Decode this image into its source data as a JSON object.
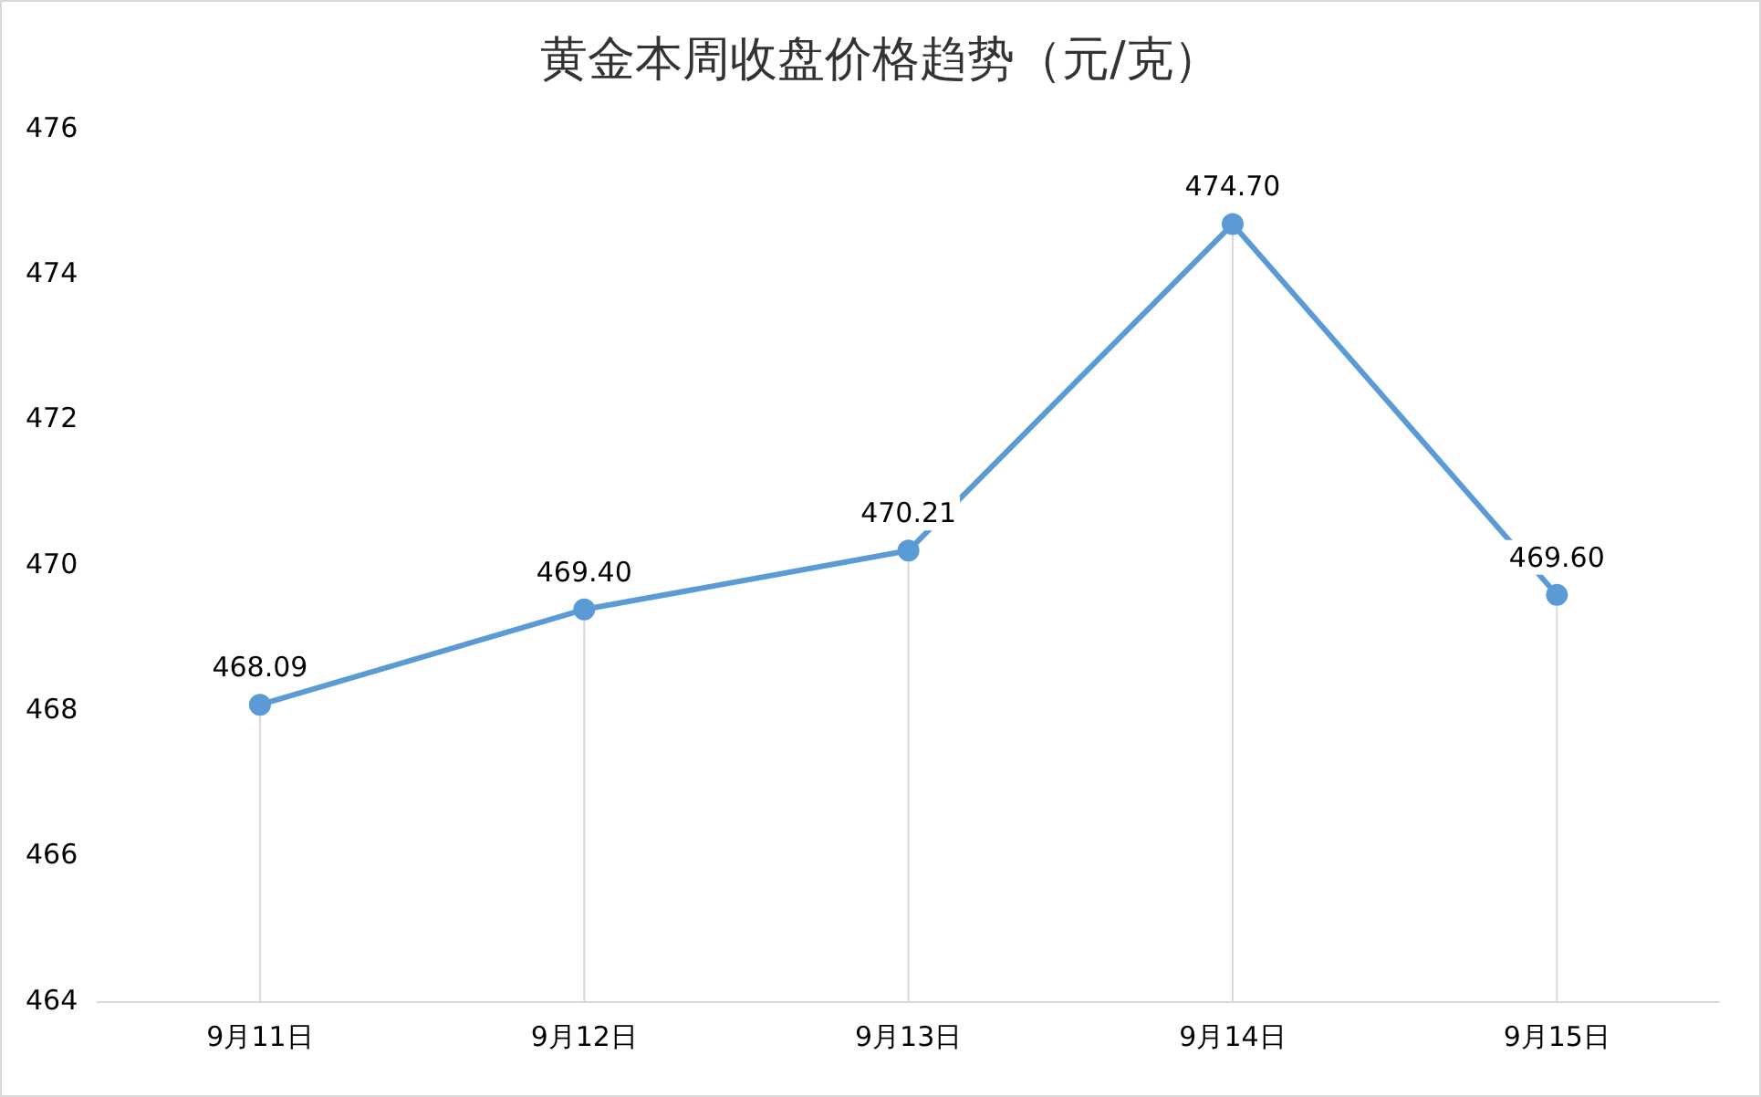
{
  "chart_data": {
    "type": "line",
    "title": "黄金本周收盘价格趋势（元/克）",
    "categories": [
      "9月11日",
      "9月12日",
      "9月13日",
      "9月14日",
      "9月15日"
    ],
    "series": [
      {
        "color": "#5b9bd5",
        "values": [
          468.09,
          469.4,
          470.21,
          474.7,
          469.6
        ]
      }
    ],
    "value_labels": [
      "468.09",
      "469.40",
      "470.21",
      "474.70",
      "469.60"
    ],
    "ylim": [
      464,
      476
    ],
    "yticks": [
      464,
      466,
      468,
      470,
      472,
      474,
      476
    ],
    "grid": "x",
    "legend": false,
    "marker": "circle",
    "line_style": "solid"
  }
}
